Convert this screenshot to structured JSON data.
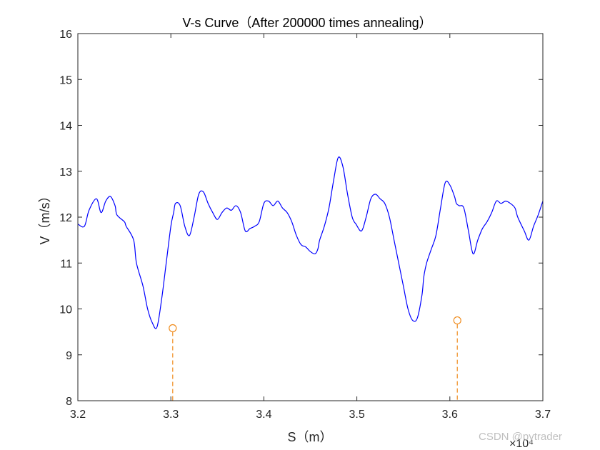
{
  "chart_data": {
    "type": "line",
    "title": "V-s Curve（After 200000 times annealing）",
    "xlabel": "S（m）",
    "ylabel": "V（m/s）",
    "x_exponent_label": "×10⁴",
    "xlim": [
      32000,
      37000
    ],
    "ylim": [
      8,
      16
    ],
    "xticks": [
      32000,
      33000,
      34000,
      35000,
      36000,
      37000
    ],
    "xtick_labels": [
      "3.2",
      "3.3",
      "3.4",
      "3.5",
      "3.6",
      "3.7"
    ],
    "yticks": [
      8,
      9,
      10,
      11,
      12,
      13,
      14,
      15,
      16
    ],
    "ytick_labels": [
      "8",
      "9",
      "10",
      "11",
      "12",
      "13",
      "14",
      "15",
      "16"
    ],
    "grid": false,
    "line_color": "#0000ff",
    "marker_color": "#f08c1e",
    "series": [
      {
        "x": [
          32000,
          32070,
          32120,
          32200,
          32250,
          32300,
          32350,
          32400,
          32420,
          32500,
          32520,
          32600,
          32630,
          32700,
          32750,
          32800,
          32850,
          32900,
          32950,
          33000,
          33030,
          33050,
          33100,
          33150,
          33200,
          33250,
          33300,
          33350,
          33400,
          33450,
          33500,
          33550,
          33600,
          33650,
          33700,
          33750,
          33800,
          33850,
          33900,
          33950,
          34000,
          34050,
          34100,
          34150,
          34200,
          34250,
          34300,
          34350,
          34400,
          34450,
          34500,
          34550,
          34580,
          34600,
          34650,
          34700,
          34750,
          34800,
          34850,
          34900,
          34950,
          34990,
          35050,
          35100,
          35150,
          35200,
          35250,
          35300,
          35350,
          35400,
          35450,
          35500,
          35550,
          35600,
          35650,
          35700,
          35720,
          35750,
          35800,
          35850,
          35900,
          35950,
          36000,
          36050,
          36070,
          36100,
          36150,
          36200,
          36250,
          36300,
          36350,
          36400,
          36450,
          36500,
          36550,
          36600,
          36650,
          36700,
          36730,
          36800,
          36850,
          36900,
          36950,
          37000
        ],
        "y": [
          11.85,
          11.8,
          12.15,
          12.4,
          12.1,
          12.35,
          12.45,
          12.25,
          12.05,
          11.9,
          11.8,
          11.5,
          11.0,
          10.5,
          10.0,
          9.7,
          9.6,
          10.2,
          11.0,
          11.8,
          12.1,
          12.3,
          12.25,
          11.8,
          11.6,
          12.0,
          12.5,
          12.55,
          12.3,
          12.1,
          11.95,
          12.1,
          12.2,
          12.15,
          12.25,
          12.1,
          11.7,
          11.75,
          11.8,
          11.9,
          12.3,
          12.35,
          12.25,
          12.35,
          12.2,
          12.1,
          11.9,
          11.6,
          11.4,
          11.35,
          11.25,
          11.2,
          11.3,
          11.5,
          11.8,
          12.2,
          12.8,
          13.3,
          13.1,
          12.5,
          12.0,
          11.85,
          11.7,
          12.0,
          12.4,
          12.5,
          12.4,
          12.3,
          12.0,
          11.5,
          11.0,
          10.5,
          10.0,
          9.75,
          9.8,
          10.3,
          10.7,
          11.0,
          11.3,
          11.6,
          12.2,
          12.75,
          12.7,
          12.45,
          12.3,
          12.25,
          12.2,
          11.7,
          11.2,
          11.5,
          11.75,
          11.9,
          12.1,
          12.35,
          12.3,
          12.35,
          12.3,
          12.2,
          12.0,
          11.7,
          11.5,
          11.8,
          12.05,
          12.35
        ]
      }
    ],
    "markers": [
      {
        "x": 33020,
        "y": 9.58
      },
      {
        "x": 36080,
        "y": 9.75
      }
    ]
  },
  "watermark": "CSDN @pytrader"
}
